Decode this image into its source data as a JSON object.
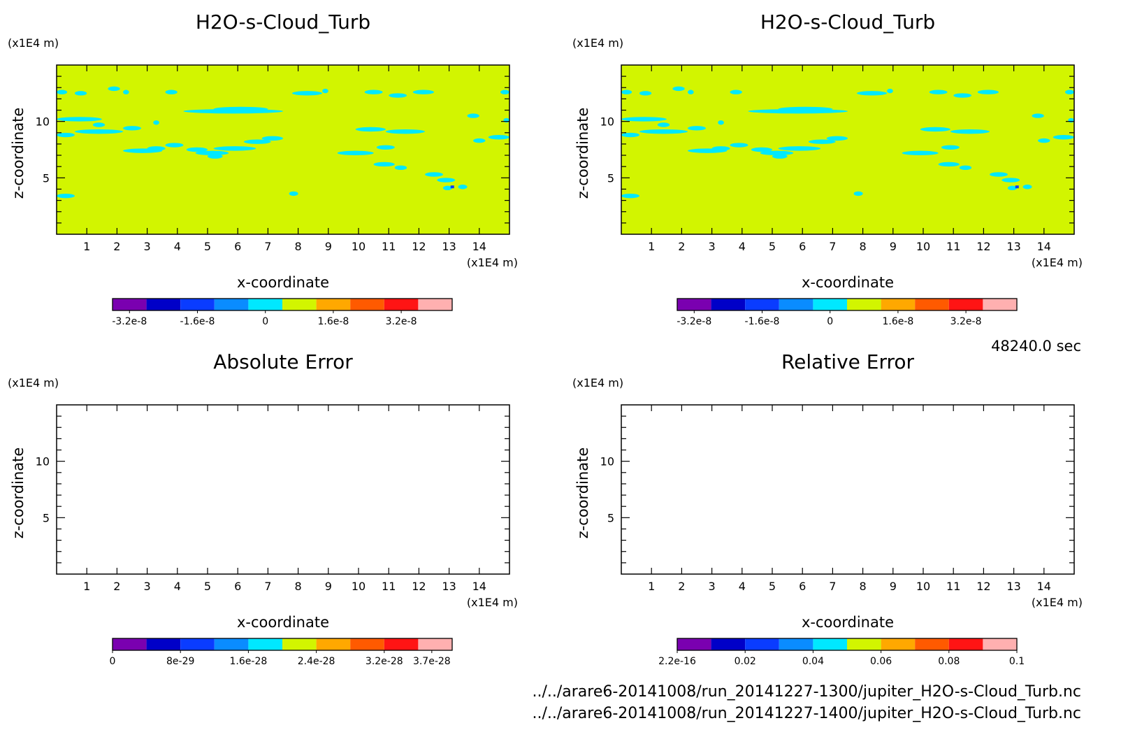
{
  "colors": {
    "palette": [
      "#7a00b0",
      "#0000c8",
      "#0a3cff",
      "#0a8cff",
      "#00e8ff",
      "#d2f500",
      "#ffa800",
      "#ff5a00",
      "#ff1414",
      "#ffb0b0"
    ],
    "field_background": "#d2f500",
    "cloud_patches": "#00e8ff"
  },
  "time_label": "48240.0 sec",
  "files": [
    "../../arare6-20141008/run_20141227-1300/jupiter_H2O-s-Cloud_Turb.nc",
    "../../arare6-20141008/run_20141227-1400/jupiter_H2O-s-Cloud_Turb.nc"
  ],
  "chart_data": [
    {
      "type": "heatmap",
      "title": "H2O-s-Cloud_Turb",
      "xlabel": "x-coordinate",
      "ylabel": "z-coordinate",
      "x_unit": "(x1E4 m)",
      "y_unit": "(x1E4 m)",
      "xlim": [
        0,
        15
      ],
      "ylim": [
        0,
        15
      ],
      "x_ticks": [
        "1",
        "2",
        "3",
        "4",
        "5",
        "6",
        "7",
        "8",
        "9",
        "10",
        "11",
        "12",
        "13",
        "14"
      ],
      "y_ticks": [
        "5",
        "10"
      ],
      "field": "near 0 everywhere with small cyan patches",
      "colorbar": {
        "ticks": [
          "-3.2e-8",
          "-1.6e-8",
          "0",
          "1.6e-8",
          "3.2e-8"
        ]
      }
    },
    {
      "type": "heatmap",
      "title": "H2O-s-Cloud_Turb",
      "xlabel": "x-coordinate",
      "ylabel": "z-coordinate",
      "x_unit": "(x1E4 m)",
      "y_unit": "(x1E4 m)",
      "xlim": [
        0,
        15
      ],
      "ylim": [
        0,
        15
      ],
      "x_ticks": [
        "1",
        "2",
        "3",
        "4",
        "5",
        "6",
        "7",
        "8",
        "9",
        "10",
        "11",
        "12",
        "13",
        "14"
      ],
      "y_ticks": [
        "5",
        "10"
      ],
      "field": "near 0 everywhere with small cyan patches",
      "colorbar": {
        "ticks": [
          "-3.2e-8",
          "-1.6e-8",
          "0",
          "1.6e-8",
          "3.2e-8"
        ]
      }
    },
    {
      "type": "heatmap",
      "title": "Absolute Error",
      "xlabel": "x-coordinate",
      "ylabel": "z-coordinate",
      "x_unit": "(x1E4 m)",
      "y_unit": "(x1E4 m)",
      "xlim": [
        0,
        15
      ],
      "ylim": [
        0,
        15
      ],
      "x_ticks": [
        "1",
        "2",
        "3",
        "4",
        "5",
        "6",
        "7",
        "8",
        "9",
        "10",
        "11",
        "12",
        "13",
        "14"
      ],
      "y_ticks": [
        "5",
        "10"
      ],
      "field": "empty",
      "colorbar": {
        "ticks": [
          "0",
          "8e-29",
          "1.6e-28",
          "2.4e-28",
          "3.2e-28",
          "3.7e-28"
        ]
      }
    },
    {
      "type": "heatmap",
      "title": "Relative Error",
      "xlabel": "x-coordinate",
      "ylabel": "z-coordinate",
      "x_unit": "(x1E4 m)",
      "y_unit": "(x1E4 m)",
      "xlim": [
        0,
        15
      ],
      "ylim": [
        0,
        15
      ],
      "x_ticks": [
        "1",
        "2",
        "3",
        "4",
        "5",
        "6",
        "7",
        "8",
        "9",
        "10",
        "11",
        "12",
        "13",
        "14"
      ],
      "y_ticks": [
        "5",
        "10"
      ],
      "field": "empty",
      "colorbar": {
        "ticks": [
          "2.2e-16",
          "0.02",
          "0.04",
          "0.06",
          "0.08",
          "0.1"
        ]
      }
    }
  ]
}
